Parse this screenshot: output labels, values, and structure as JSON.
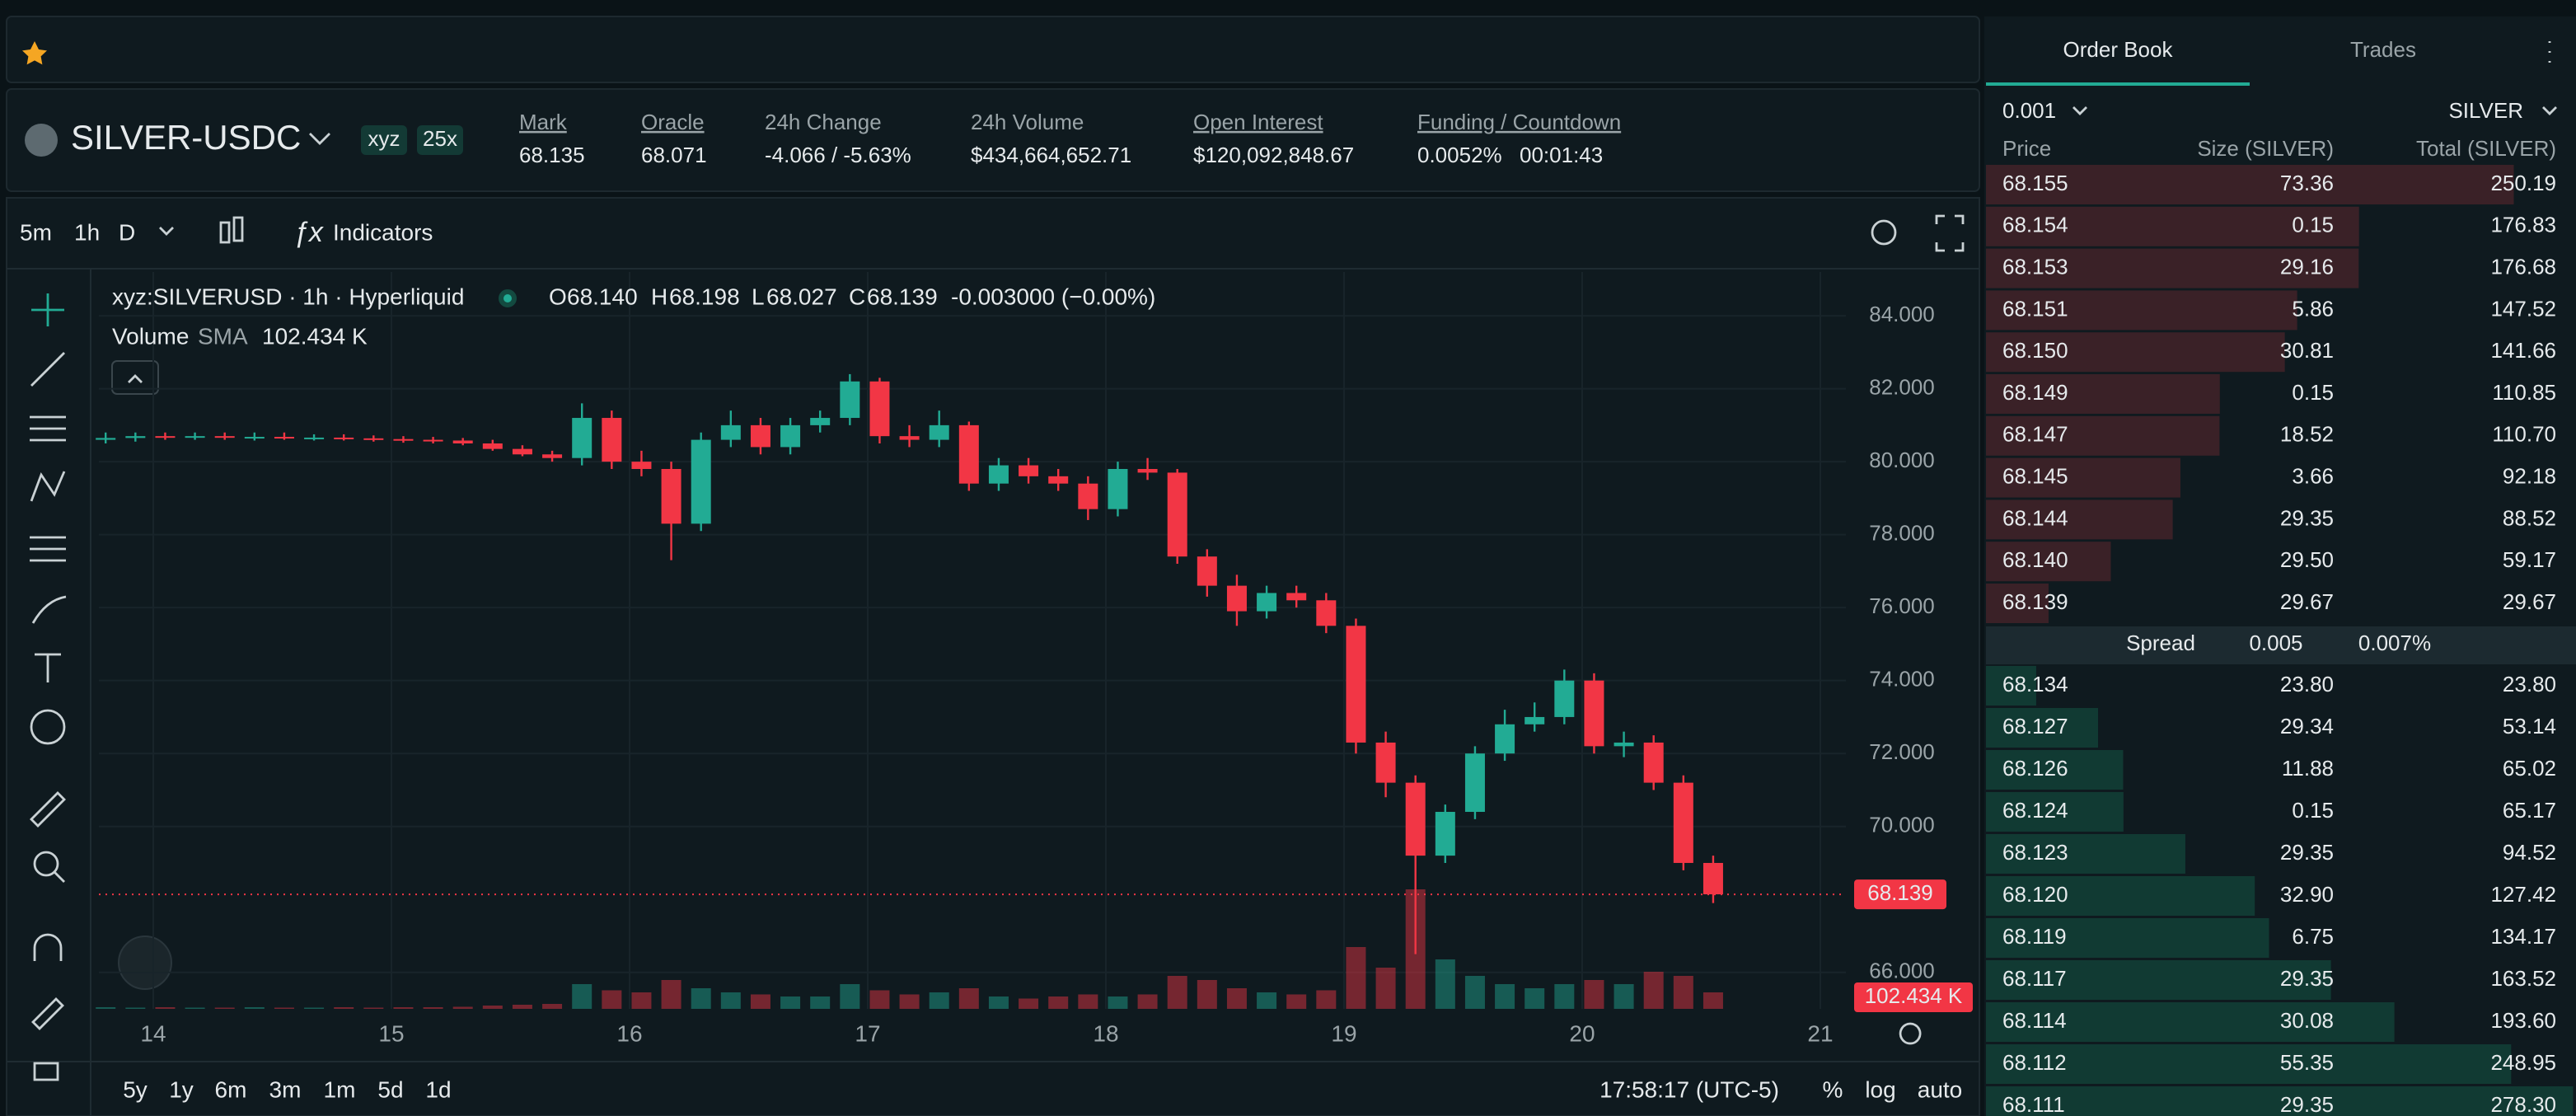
{
  "header": {
    "symbol": "SILVER-USDC",
    "tags": [
      "xyz",
      "25x"
    ],
    "stats": [
      {
        "label": "Mark",
        "value": "68.135"
      },
      {
        "label": "Oracle",
        "value": "68.071"
      },
      {
        "label": "24h Change",
        "value": "-4.066 / -5.63%"
      },
      {
        "label": "24h Volume",
        "value": "$434,664,652.71"
      },
      {
        "label": "Open Interest",
        "value": "$120,092,848.67"
      }
    ],
    "funding": {
      "label": "Funding / Countdown",
      "rate": "0.0052%",
      "countdown": "00:01:43"
    }
  },
  "toolbar": {
    "intervals": [
      "5m",
      "1h",
      "D"
    ],
    "indicators": "Indicators"
  },
  "chart_data": {
    "type": "candlestick",
    "legend": {
      "title": "xyz:SILVERUSD · 1h · Hyperliquid",
      "ohlc": [
        {
          "key": "O",
          "value": "68.140"
        },
        {
          "key": "H",
          "value": "68.198"
        },
        {
          "key": "L",
          "value": "68.027"
        },
        {
          "key": "C",
          "value": "68.139"
        }
      ],
      "change": "-0.003000 (−0.00%)",
      "volume": "Volume",
      "sma": "SMA",
      "sma_value": "102.434 K"
    },
    "x": [
      13.8,
      13.925,
      14.05,
      14.175,
      14.3,
      14.425,
      14.55,
      14.675,
      14.8,
      14.925,
      15.05,
      15.175,
      15.3,
      15.425,
      15.55,
      15.675,
      15.8,
      15.925,
      16.05,
      16.175,
      16.3,
      16.425,
      16.55,
      16.675,
      16.8,
      16.925,
      17.05,
      17.175,
      17.3,
      17.425,
      17.55,
      17.675,
      17.8,
      17.925,
      18.05,
      18.175,
      18.3,
      18.425,
      18.55,
      18.675,
      18.8,
      18.925,
      19.05,
      19.175,
      19.3,
      19.425,
      19.55,
      19.675,
      19.8,
      19.925,
      20.05,
      20.175,
      20.3,
      20.425,
      20.55
    ],
    "open": [
      80.6,
      80.65,
      80.7,
      80.68,
      80.7,
      80.66,
      80.68,
      80.65,
      80.66,
      80.64,
      80.62,
      80.6,
      80.58,
      80.5,
      80.35,
      80.2,
      80.1,
      81.2,
      80.0,
      79.8,
      78.3,
      80.6,
      81.0,
      80.4,
      81.0,
      81.2,
      82.2,
      80.7,
      80.6,
      81.0,
      79.4,
      79.9,
      79.6,
      79.4,
      78.7,
      79.8,
      79.7,
      77.4,
      76.6,
      75.9,
      76.4,
      76.2,
      75.5,
      72.3,
      71.2,
      69.2,
      70.4,
      72.0,
      72.8,
      73.0,
      74.0,
      72.2,
      72.3,
      71.2,
      69.0
    ],
    "high": [
      80.8,
      80.8,
      80.8,
      80.8,
      80.8,
      80.8,
      80.8,
      80.75,
      80.75,
      80.72,
      80.7,
      80.68,
      80.65,
      80.6,
      80.45,
      80.3,
      81.6,
      81.4,
      80.3,
      80.0,
      80.8,
      81.4,
      81.2,
      81.2,
      81.4,
      82.4,
      82.3,
      81.0,
      81.4,
      81.1,
      80.1,
      80.1,
      79.8,
      79.6,
      80.0,
      80.1,
      79.8,
      77.6,
      76.9,
      76.6,
      76.6,
      76.4,
      75.7,
      72.6,
      71.4,
      70.6,
      72.2,
      73.2,
      73.4,
      74.3,
      74.2,
      72.6,
      72.5,
      71.4,
      69.2
    ],
    "low": [
      80.5,
      80.55,
      80.6,
      80.6,
      80.6,
      80.58,
      80.6,
      80.58,
      80.58,
      80.55,
      80.52,
      80.5,
      80.45,
      80.3,
      80.15,
      80.0,
      79.9,
      79.8,
      79.6,
      77.3,
      78.1,
      80.4,
      80.2,
      80.2,
      80.8,
      81.0,
      80.5,
      80.4,
      80.4,
      79.2,
      79.2,
      79.4,
      79.2,
      78.4,
      78.5,
      79.5,
      77.2,
      76.3,
      75.5,
      75.7,
      76.0,
      75.3,
      72.0,
      70.8,
      66.5,
      69.0,
      70.2,
      71.8,
      72.6,
      72.8,
      72.0,
      71.9,
      71.0,
      68.8,
      67.9
    ],
    "close": [
      80.65,
      80.7,
      80.68,
      80.7,
      80.66,
      80.68,
      80.65,
      80.66,
      80.64,
      80.62,
      80.6,
      80.58,
      80.5,
      80.35,
      80.2,
      80.1,
      81.2,
      80.0,
      79.8,
      78.3,
      80.6,
      81.0,
      80.4,
      81.0,
      81.2,
      82.2,
      80.7,
      80.6,
      81.0,
      79.4,
      79.9,
      79.6,
      79.4,
      78.7,
      79.8,
      79.7,
      77.4,
      76.6,
      75.9,
      76.4,
      76.2,
      75.5,
      72.3,
      71.2,
      69.2,
      70.4,
      72.0,
      72.8,
      73.0,
      74.0,
      72.2,
      72.3,
      71.2,
      69.0,
      68.14
    ],
    "volume": [
      4,
      3,
      4,
      3,
      3,
      4,
      3,
      3,
      4,
      3,
      4,
      4,
      5,
      8,
      10,
      12,
      60,
      45,
      40,
      70,
      50,
      40,
      35,
      30,
      30,
      60,
      45,
      35,
      40,
      50,
      30,
      25,
      30,
      35,
      30,
      35,
      80,
      70,
      50,
      40,
      35,
      45,
      150,
      100,
      290,
      120,
      80,
      60,
      50,
      60,
      70,
      60,
      90,
      80,
      40
    ],
    "up_color": "#22ab94",
    "down_color": "#f23645",
    "xlim": [
      13.8,
      21.2
    ],
    "xticks": [
      14,
      15,
      16,
      17,
      18,
      19,
      20,
      21
    ],
    "ylim": [
      65,
      85.2
    ],
    "yticks": [
      {
        "value": 84,
        "label": "84.000"
      },
      {
        "value": 82,
        "label": "82.000"
      },
      {
        "value": 80,
        "label": "80.000"
      },
      {
        "value": 78,
        "label": "78.000"
      },
      {
        "value": 76,
        "label": "76.000"
      },
      {
        "value": 74,
        "label": "74.000"
      },
      {
        "value": 72,
        "label": "72.000"
      },
      {
        "value": 70,
        "label": "70.000"
      },
      {
        "value": 66,
        "label": "66.000"
      }
    ],
    "volume_lim": [
      0,
      400
    ],
    "grid": true,
    "last_price": {
      "value": 68.139,
      "label": "68.139"
    }
  },
  "range_bar": {
    "ranges": [
      "5y",
      "1y",
      "6m",
      "3m",
      "1m",
      "5d",
      "1d"
    ],
    "clock": "17:58:17 (UTC-5)",
    "options": [
      "%",
      "log",
      "auto"
    ]
  },
  "order_book": {
    "tabs": [
      "Order Book",
      "Trades"
    ],
    "tick": "0.001",
    "asset": "SILVER",
    "columns": [
      "Price",
      "Size (SILVER)",
      "Total (SILVER)"
    ],
    "asks": [
      [
        "68.155",
        "73.36",
        "250.19"
      ],
      [
        "68.154",
        "0.15",
        "176.83"
      ],
      [
        "68.153",
        "29.16",
        "176.68"
      ],
      [
        "68.151",
        "5.86",
        "147.52"
      ],
      [
        "68.150",
        "30.81",
        "141.66"
      ],
      [
        "68.149",
        "0.15",
        "110.85"
      ],
      [
        "68.147",
        "18.52",
        "110.70"
      ],
      [
        "68.145",
        "3.66",
        "92.18"
      ],
      [
        "68.144",
        "29.35",
        "88.52"
      ],
      [
        "68.140",
        "29.50",
        "59.17"
      ],
      [
        "68.139",
        "29.67",
        "29.67"
      ]
    ],
    "spread": [
      "Spread",
      "0.005",
      "0.007%"
    ],
    "bids": [
      [
        "68.134",
        "23.80",
        "23.80"
      ],
      [
        "68.127",
        "29.34",
        "53.14"
      ],
      [
        "68.126",
        "11.88",
        "65.02"
      ],
      [
        "68.124",
        "0.15",
        "65.17"
      ],
      [
        "68.123",
        "29.35",
        "94.52"
      ],
      [
        "68.120",
        "32.90",
        "127.42"
      ],
      [
        "68.119",
        "6.75",
        "134.17"
      ],
      [
        "68.117",
        "29.35",
        "163.52"
      ],
      [
        "68.114",
        "30.08",
        "193.60"
      ],
      [
        "68.112",
        "55.35",
        "248.95"
      ],
      [
        "68.111",
        "29.35",
        "278.30"
      ]
    ]
  }
}
